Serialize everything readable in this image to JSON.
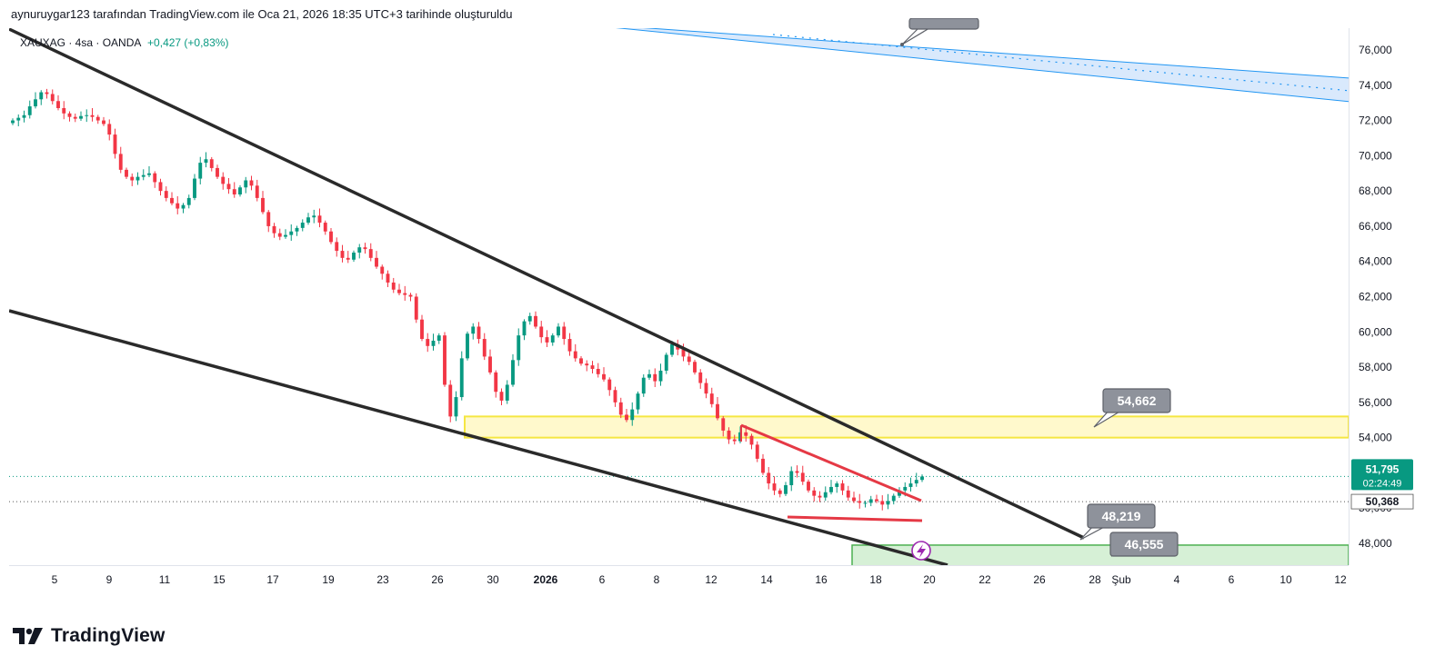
{
  "header": {
    "created_by": "aynuruygar123 tarafından TradingView.com ile Oca 21, 2026 18:35 UTC+3 tarihinde oluşturuldu"
  },
  "legend": {
    "symbol": "XAUXAG · 4sa · OANDA",
    "change": "+0,427 (+0,83%)"
  },
  "brand": {
    "name": "TradingView"
  },
  "colors": {
    "up": "#089981",
    "down": "#f23645",
    "trendline": "#2a2a2a",
    "triangle": "#e53945",
    "zone_yellow_fill": "#fff9cc",
    "zone_yellow_border": "#f5e642",
    "zone_green_fill": "#d6f0d6",
    "zone_green_border": "#4caf50",
    "channel_blue": "#2196f3",
    "callout_bg": "#8e929b",
    "price_tag": "#089981"
  },
  "chart_data": {
    "type": "candlestick",
    "y_axis": {
      "ylim": [
        46900,
        77200
      ],
      "ticks": [
        "76,000",
        "74,000",
        "72,000",
        "70,000",
        "68,000",
        "66,000",
        "64,000",
        "62,000",
        "60,000",
        "58,000",
        "56,000",
        "54,000",
        "48,000"
      ],
      "tick_values": [
        76000,
        74000,
        72000,
        70000,
        68000,
        66000,
        64000,
        62000,
        60000,
        58000,
        56000,
        54000,
        48000
      ],
      "partial_tick": "50,000"
    },
    "x_axis": {
      "labels": [
        "5",
        "9",
        "11",
        "15",
        "17",
        "19",
        "23",
        "26",
        "30",
        "2026",
        "6",
        "8",
        "12",
        "14",
        "16",
        "18",
        "20",
        "22",
        "26",
        "28",
        "Şub",
        "4",
        "6",
        "10",
        "12"
      ],
      "bold": [
        "2026"
      ]
    },
    "current_price": {
      "price": "51,795",
      "countdown": "02:24:49",
      "value": 51795
    },
    "secondary_price": {
      "price": "50,368",
      "value": 50368
    },
    "callouts": [
      {
        "label": "54,662",
        "value": 54662
      },
      {
        "label": "48,219",
        "value": 48219
      },
      {
        "label": "46,555",
        "value": 46555
      }
    ],
    "zones": [
      {
        "name": "resistance-zone",
        "low": 54000,
        "high": 55200
      },
      {
        "name": "target-zone",
        "low": 46900,
        "high": 47900
      }
    ],
    "closes": [
      72000,
      72150,
      72300,
      72800,
      73200,
      73600,
      73500,
      73100,
      72700,
      72400,
      72200,
      72100,
      72250,
      72300,
      72200,
      72000,
      71800,
      71200,
      70100,
      69200,
      68800,
      68600,
      68800,
      68900,
      69000,
      68500,
      68000,
      67600,
      67300,
      67000,
      67200,
      67600,
      68700,
      69600,
      69800,
      69300,
      68800,
      68400,
      68100,
      67800,
      68200,
      68600,
      68300,
      67600,
      66800,
      66000,
      65600,
      65400,
      65500,
      65700,
      65900,
      66200,
      66500,
      66600,
      66200,
      65700,
      65100,
      64600,
      64200,
      64100,
      64500,
      64800,
      64700,
      64200,
      63700,
      63300,
      62800,
      62400,
      62200,
      62100,
      62000,
      60700,
      59600,
      59200,
      59500,
      59800,
      57000,
      55200,
      56300,
      58500,
      59900,
      60300,
      59600,
      58600,
      57700,
      56600,
      56100,
      57000,
      58400,
      59800,
      60600,
      60900,
      60300,
      59700,
      59400,
      59800,
      60300,
      59600,
      58900,
      58500,
      58200,
      58100,
      57900,
      57600,
      57300,
      56700,
      56000,
      55300,
      55000,
      55600,
      56500,
      57400,
      57600,
      57200,
      57800,
      58700,
      59300,
      59000,
      58600,
      58300,
      57700,
      57100,
      56500,
      55900,
      55100,
      54400,
      53900,
      53800,
      54300,
      54100,
      53600,
      52800,
      52000,
      51400,
      51000,
      50800,
      51300,
      52100,
      52000,
      51500,
      51000,
      50700,
      50600,
      50900,
      51200,
      51400,
      51000,
      50600,
      50400,
      50300,
      50300,
      50500,
      50400,
      50200,
      50400,
      50700,
      51000,
      51200,
      51400,
      51600,
      51795
    ]
  }
}
